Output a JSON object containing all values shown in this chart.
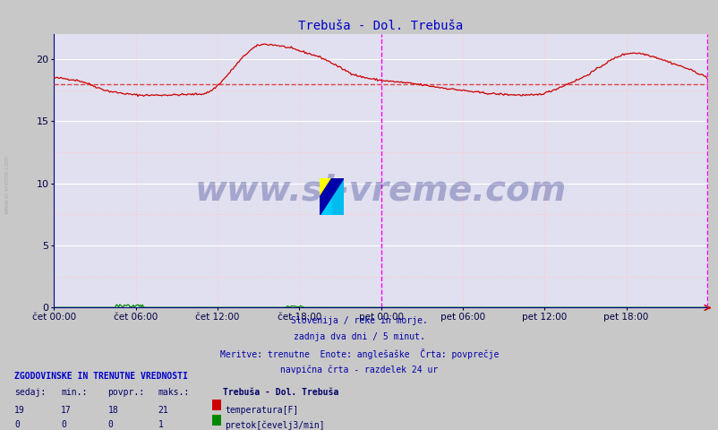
{
  "title": "Trebuša - Dol. Trebuša",
  "title_color": "#0000cc",
  "title_fontsize": 10,
  "bg_color": "#c8c8c8",
  "plot_bg_color": "#e0e0f0",
  "xlim": [
    0,
    576
  ],
  "ylim": [
    0,
    22
  ],
  "yticks": [
    0,
    5,
    10,
    15,
    20
  ],
  "xtick_labels": [
    "čet 00:00",
    "čet 06:00",
    "čet 12:00",
    "čet 18:00",
    "pet 00:00",
    "pet 06:00",
    "pet 12:00",
    "pet 18:00"
  ],
  "xtick_positions": [
    0,
    72,
    144,
    216,
    288,
    360,
    432,
    504
  ],
  "n_points": 576,
  "avg_temperature": 18,
  "avg_color": "#dd4444",
  "temp_color": "#cc0000",
  "flow_color": "#008800",
  "magenta_vline_x": 288,
  "magenta_vline2_x": 575,
  "subtitle_lines": [
    "Slovenija / reke in morje.",
    "zadnja dva dni / 5 minut.",
    "Meritve: trenutne  Enote: anglešaške  Črta: povprečje",
    "navpična črta - razdelek 24 ur"
  ],
  "subtitle_color": "#0000aa",
  "table_title": "ZGODOVINSKE IN TRENUTNE VREDNOSTI",
  "table_headers": [
    "sedaj:",
    "min.:",
    "povpr.:",
    "maks.:"
  ],
  "table_row1": [
    "19",
    "17",
    "18",
    "21"
  ],
  "table_row2": [
    "0",
    "0",
    "0",
    "1"
  ],
  "legend_items": [
    "temperatura[F]",
    "pretok[čevelj3/min]"
  ],
  "legend_colors": [
    "#cc0000",
    "#008800"
  ],
  "station_label": "Trebuša - Dol. Trebuša",
  "left_label": "www.si-vreme.com",
  "watermark_text": "www.si-vreme.com",
  "watermark_color": "#1a237e",
  "watermark_alpha": 0.3
}
